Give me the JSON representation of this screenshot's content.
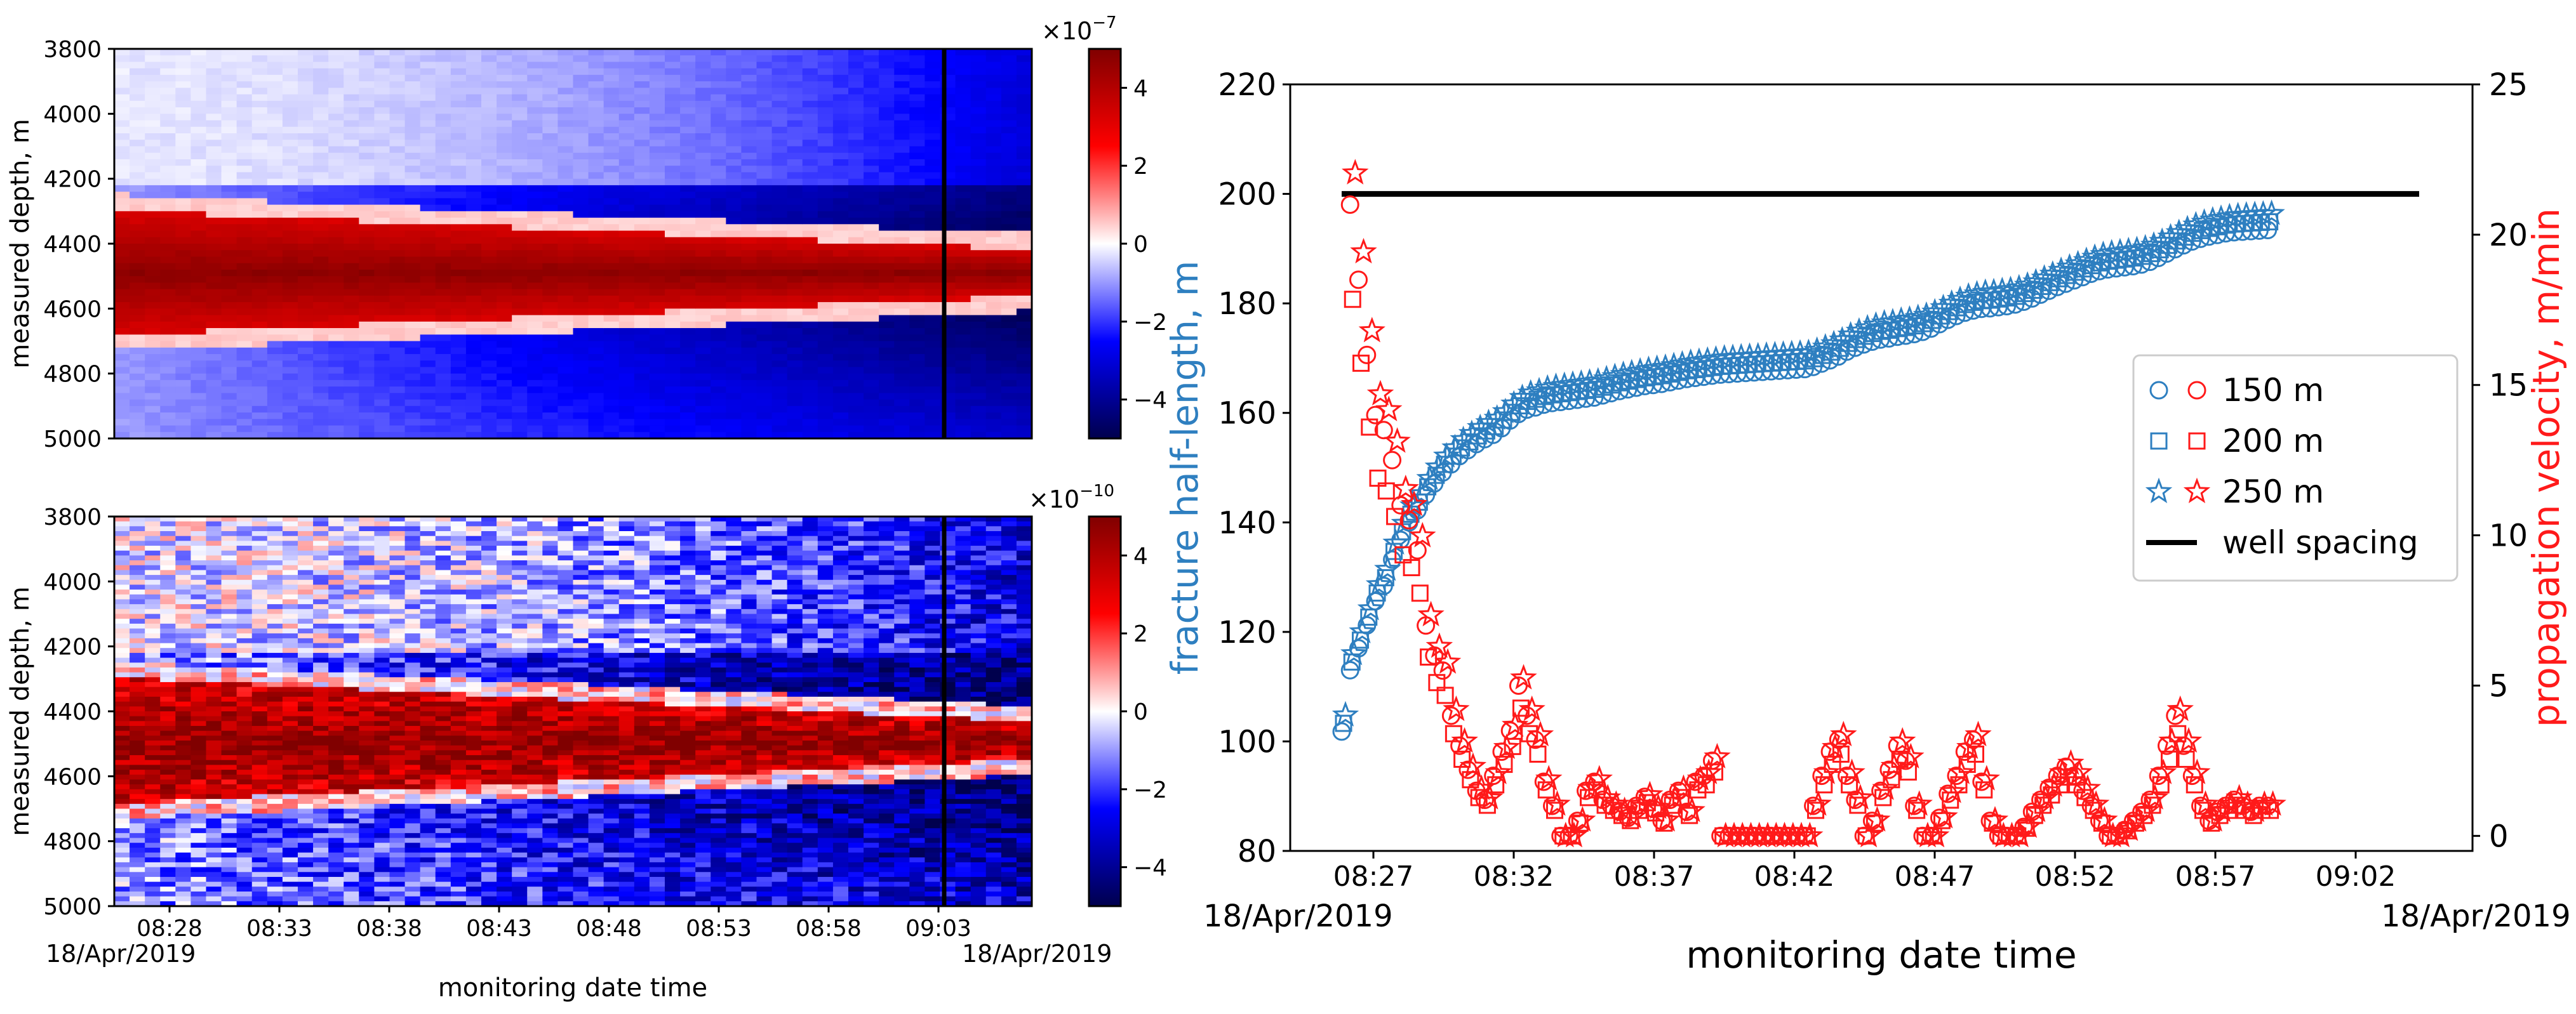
{
  "chart_data": [
    {
      "type": "heatmap",
      "panel": "top-left",
      "ylabel": "measured depth, m",
      "xlabel": "",
      "ylim": [
        5000,
        3800
      ],
      "y_ticks": [
        "3800",
        "4000",
        "4200",
        "4400",
        "4600",
        "4800",
        "5000"
      ],
      "x_ticks": [],
      "colorbar": {
        "exponent_label": "×10",
        "exponent_power": "−7",
        "ticks": [
          "4",
          "2",
          "0",
          "−2",
          "−4"
        ],
        "range": [
          -5,
          5
        ],
        "colormap": "seismic"
      },
      "vertical_marker_time": "09:03:40",
      "description_of_field": {
        "band_center_depth": 4490,
        "band_halfwidth_start": 180,
        "band_halfwidth_end": 60
      }
    },
    {
      "type": "heatmap",
      "panel": "bottom-left",
      "ylabel": "measured depth, m",
      "xlabel": "monitoring date time",
      "ylim": [
        5000,
        3800
      ],
      "y_ticks": [
        "3800",
        "4000",
        "4200",
        "4400",
        "4600",
        "4800",
        "5000"
      ],
      "x_ticks": [
        "08:28",
        "08:33",
        "08:38",
        "08:43",
        "08:48",
        "08:53",
        "08:58",
        "09:03"
      ],
      "x_start_label": "18/Apr/2019",
      "x_end_label": "18/Apr/2019",
      "colorbar": {
        "exponent_label": "×10",
        "exponent_power": "−10",
        "ticks": [
          "4",
          "2",
          "0",
          "−2",
          "−4"
        ],
        "range": [
          -5,
          5
        ],
        "colormap": "seismic"
      },
      "vertical_marker_time": "09:03:40"
    },
    {
      "type": "scatter",
      "panel": "right",
      "xlabel": "monitoring date time",
      "ylabel": "fracture half-length, m",
      "y2label": "propagation velocity, m/min",
      "ylim": [
        80,
        220
      ],
      "y2lim": [
        -0.5,
        25
      ],
      "y_ticks": [
        "80",
        "100",
        "120",
        "140",
        "160",
        "180",
        "200",
        "220"
      ],
      "y2_ticks": [
        "0",
        "5",
        "10",
        "15",
        "20",
        "25"
      ],
      "x_ticks": [
        "08:27",
        "08:32",
        "08:37",
        "08:42",
        "08:47",
        "08:52",
        "08:57",
        "09:02"
      ],
      "x_start_label": "18/Apr/2019",
      "x_end_label": "18/Apr/2019",
      "legend_position": "center-right",
      "legend": [
        {
          "label": "150 m",
          "marker": "circle"
        },
        {
          "label": "200 m",
          "marker": "square"
        },
        {
          "label": "250 m",
          "marker": "star"
        },
        {
          "label": "well spacing",
          "marker": "line"
        }
      ],
      "well_spacing": 200,
      "half_length_150m": [
        [
          0.0,
          101.8
        ],
        [
          0.3,
          113.0
        ],
        [
          0.6,
          117.0
        ],
        [
          0.9,
          121.2
        ],
        [
          1.2,
          125.6
        ],
        [
          1.5,
          128.4
        ],
        [
          1.8,
          133.2
        ],
        [
          2.1,
          136.8
        ],
        [
          2.4,
          140.0
        ],
        [
          2.7,
          142.2
        ],
        [
          3.0,
          145.0
        ],
        [
          3.3,
          147.1
        ],
        [
          3.6,
          149.1
        ],
        [
          3.9,
          150.6
        ],
        [
          4.2,
          152.1
        ],
        [
          4.5,
          153.2
        ],
        [
          4.8,
          154.3
        ],
        [
          5.1,
          155.2
        ],
        [
          5.4,
          156.0
        ],
        [
          5.7,
          157.2
        ],
        [
          6.0,
          158.6
        ],
        [
          6.3,
          159.8
        ],
        [
          6.6,
          160.6
        ],
        [
          6.9,
          161.0
        ],
        [
          7.2,
          161.5
        ],
        [
          7.5,
          161.8
        ],
        [
          7.8,
          162.0
        ],
        [
          8.1,
          162.2
        ],
        [
          8.4,
          162.4
        ],
        [
          8.7,
          162.6
        ],
        [
          9.0,
          162.8
        ],
        [
          9.3,
          163.2
        ],
        [
          9.6,
          163.6
        ],
        [
          9.9,
          164.0
        ],
        [
          10.2,
          164.3
        ],
        [
          10.5,
          164.6
        ],
        [
          10.8,
          164.9
        ],
        [
          11.1,
          165.1
        ],
        [
          11.4,
          165.3
        ],
        [
          11.7,
          165.6
        ],
        [
          12.0,
          165.9
        ],
        [
          12.3,
          166.2
        ],
        [
          12.6,
          166.4
        ],
        [
          12.9,
          166.6
        ],
        [
          13.2,
          166.8
        ],
        [
          13.5,
          167.0
        ],
        [
          13.8,
          167.1
        ],
        [
          14.1,
          167.2
        ],
        [
          14.4,
          167.3
        ],
        [
          14.7,
          167.4
        ],
        [
          15.0,
          167.5
        ],
        [
          15.3,
          167.6
        ],
        [
          15.6,
          167.7
        ],
        [
          15.9,
          167.8
        ],
        [
          16.2,
          167.9
        ],
        [
          16.5,
          168.0
        ],
        [
          16.8,
          168.4
        ],
        [
          17.1,
          169.0
        ],
        [
          17.4,
          169.6
        ],
        [
          17.7,
          170.3
        ],
        [
          18.0,
          171.2
        ],
        [
          18.3,
          171.9
        ],
        [
          18.6,
          172.5
        ],
        [
          18.9,
          173.0
        ],
        [
          19.2,
          173.4
        ],
        [
          19.5,
          173.6
        ],
        [
          19.8,
          173.9
        ],
        [
          20.1,
          174.1
        ],
        [
          20.4,
          174.4
        ],
        [
          20.7,
          174.8
        ],
        [
          21.0,
          175.4
        ],
        [
          21.3,
          176.2
        ],
        [
          21.6,
          177.0
        ],
        [
          21.9,
          177.7
        ],
        [
          22.2,
          178.3
        ],
        [
          22.5,
          178.7
        ],
        [
          22.8,
          179.0
        ],
        [
          23.1,
          179.1
        ],
        [
          23.4,
          179.3
        ],
        [
          23.7,
          179.5
        ],
        [
          24.0,
          179.8
        ],
        [
          24.3,
          180.3
        ],
        [
          24.6,
          180.9
        ],
        [
          24.9,
          181.6
        ],
        [
          25.2,
          182.3
        ],
        [
          25.5,
          183.0
        ],
        [
          25.8,
          183.6
        ],
        [
          26.1,
          184.2
        ],
        [
          26.4,
          184.8
        ],
        [
          26.7,
          185.4
        ],
        [
          27.0,
          185.9
        ],
        [
          27.3,
          186.2
        ],
        [
          27.6,
          186.4
        ],
        [
          27.9,
          186.6
        ],
        [
          28.2,
          186.8
        ],
        [
          28.5,
          187.1
        ],
        [
          28.8,
          187.6
        ],
        [
          29.1,
          188.3
        ],
        [
          29.4,
          189.1
        ],
        [
          29.7,
          189.9
        ],
        [
          30.0,
          190.6
        ],
        [
          30.3,
          191.3
        ],
        [
          30.6,
          191.8
        ],
        [
          30.9,
          192.2
        ],
        [
          31.2,
          192.5
        ],
        [
          31.5,
          192.8
        ],
        [
          31.8,
          193.0
        ],
        [
          32.1,
          193.1
        ],
        [
          32.4,
          193.2
        ],
        [
          32.7,
          193.3
        ],
        [
          33.0,
          193.4
        ]
      ],
      "propagation_velocity": [
        [
          0.3,
          21.0
        ],
        [
          0.6,
          18.5
        ],
        [
          0.9,
          16.0
        ],
        [
          1.2,
          14.0
        ],
        [
          1.5,
          13.5
        ],
        [
          1.8,
          12.5
        ],
        [
          2.1,
          11.0
        ],
        [
          2.4,
          10.5
        ],
        [
          2.7,
          9.5
        ],
        [
          3.0,
          7.0
        ],
        [
          3.3,
          6.0
        ],
        [
          3.6,
          5.5
        ],
        [
          3.9,
          4.0
        ],
        [
          4.2,
          3.0
        ],
        [
          4.5,
          2.2
        ],
        [
          4.8,
          1.5
        ],
        [
          5.1,
          1.2
        ],
        [
          5.4,
          2.0
        ],
        [
          5.7,
          2.8
        ],
        [
          6.0,
          3.5
        ],
        [
          6.3,
          5.0
        ],
        [
          6.6,
          4.0
        ],
        [
          6.9,
          3.2
        ],
        [
          7.2,
          1.8
        ],
        [
          7.5,
          1.0
        ],
        [
          7.8,
          0.0
        ],
        [
          8.1,
          0.0
        ],
        [
          8.4,
          0.5
        ],
        [
          8.7,
          1.5
        ],
        [
          9.0,
          1.8
        ],
        [
          9.3,
          1.2
        ],
        [
          9.6,
          1.0
        ],
        [
          9.9,
          0.8
        ],
        [
          10.2,
          0.6
        ],
        [
          10.5,
          1.0
        ],
        [
          10.8,
          1.3
        ],
        [
          11.1,
          0.9
        ],
        [
          11.4,
          0.5
        ],
        [
          11.7,
          1.2
        ],
        [
          12.0,
          1.5
        ],
        [
          12.3,
          0.8
        ],
        [
          12.6,
          1.8
        ],
        [
          12.9,
          2.0
        ],
        [
          13.2,
          2.5
        ],
        [
          13.5,
          0.0
        ],
        [
          13.8,
          0.0
        ],
        [
          14.1,
          0.0
        ],
        [
          14.4,
          0.0
        ],
        [
          14.7,
          0.0
        ],
        [
          15.0,
          0.0
        ],
        [
          15.3,
          0.0
        ],
        [
          15.6,
          0.0
        ],
        [
          15.9,
          0.0
        ],
        [
          16.2,
          0.0
        ],
        [
          16.5,
          0.0
        ],
        [
          16.8,
          1.0
        ],
        [
          17.1,
          2.0
        ],
        [
          17.4,
          2.8
        ],
        [
          17.7,
          3.2
        ],
        [
          18.0,
          2.0
        ],
        [
          18.3,
          1.2
        ],
        [
          18.6,
          0.0
        ],
        [
          18.9,
          0.5
        ],
        [
          19.2,
          1.5
        ],
        [
          19.5,
          2.2
        ],
        [
          19.8,
          3.0
        ],
        [
          20.1,
          2.5
        ],
        [
          20.4,
          1.0
        ],
        [
          20.7,
          0.0
        ],
        [
          21.0,
          0.0
        ],
        [
          21.3,
          0.6
        ],
        [
          21.6,
          1.4
        ],
        [
          21.9,
          2.0
        ],
        [
          22.2,
          2.8
        ],
        [
          22.5,
          3.2
        ],
        [
          22.8,
          1.8
        ],
        [
          23.1,
          0.5
        ],
        [
          23.4,
          0.0
        ],
        [
          23.7,
          0.0
        ],
        [
          24.0,
          0.0
        ],
        [
          24.3,
          0.3
        ],
        [
          24.6,
          0.8
        ],
        [
          24.9,
          1.2
        ],
        [
          25.2,
          1.6
        ],
        [
          25.5,
          2.0
        ],
        [
          25.8,
          2.3
        ],
        [
          26.1,
          2.0
        ],
        [
          26.4,
          1.5
        ],
        [
          26.7,
          1.0
        ],
        [
          27.0,
          0.5
        ],
        [
          27.3,
          0.0
        ],
        [
          27.6,
          0.0
        ],
        [
          27.9,
          0.2
        ],
        [
          28.2,
          0.5
        ],
        [
          28.5,
          0.8
        ],
        [
          28.8,
          1.2
        ],
        [
          29.1,
          2.0
        ],
        [
          29.4,
          3.0
        ],
        [
          29.7,
          4.0
        ],
        [
          30.0,
          3.0
        ],
        [
          30.3,
          2.0
        ],
        [
          30.6,
          1.0
        ],
        [
          30.9,
          0.5
        ],
        [
          31.2,
          0.8
        ],
        [
          31.5,
          1.0
        ],
        [
          31.8,
          1.2
        ],
        [
          32.1,
          1.0
        ],
        [
          32.4,
          0.8
        ],
        [
          32.7,
          1.0
        ],
        [
          33.0,
          1.0
        ]
      ]
    }
  ],
  "colors": {
    "blue_series": "#2e7fc0",
    "red_series": "#ff1a1a",
    "well_spacing": "#000000",
    "ylabel_left_color": "#2e7fc0",
    "ylabel_right_color": "#ff1a1a"
  }
}
